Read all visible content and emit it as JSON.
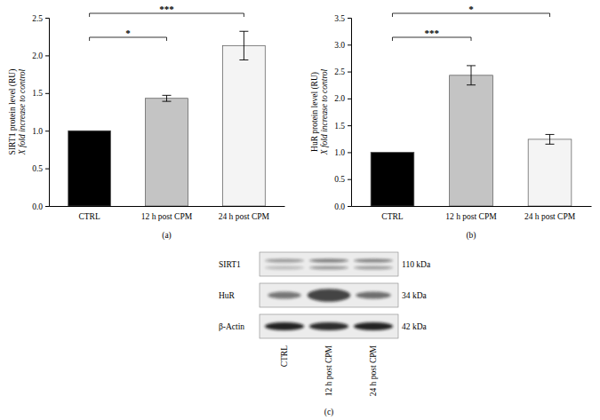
{
  "chart_data": [
    {
      "type": "bar",
      "y_label": [
        "SIRT1 protein level (RU)",
        "X fold increase to control"
      ],
      "panel_label": "(a)",
      "categories": [
        "CTRL",
        "12 h post CPM",
        "24 h post CPM"
      ],
      "values": [
        1.0,
        1.43,
        2.13
      ],
      "errors": [
        0,
        0.04,
        0.19
      ],
      "colors": [
        "#000000",
        "#c4c4c4",
        "#f4f4f4"
      ],
      "ylim": [
        0,
        2.5
      ],
      "yticks": [
        {
          "value": 0,
          "label": "0.0"
        },
        0.5,
        {
          "value": 1,
          "label": "1.0"
        },
        1.5,
        {
          "value": 2,
          "label": "2.0"
        },
        2.5
      ],
      "annotations": [
        {
          "text": "*",
          "from": 0,
          "to": 1
        },
        {
          "text": "***",
          "from": 0,
          "to": 2
        }
      ],
      "grid": false
    },
    {
      "type": "bar",
      "y_label": [
        "HuR protein level (RU)",
        "X fold increase to control"
      ],
      "panel_label": "(b)",
      "categories": [
        "CTRL",
        "12 h post CPM",
        "24 h post CPM"
      ],
      "values": [
        1.0,
        2.43,
        1.24
      ],
      "errors": [
        0,
        0.18,
        0.09
      ],
      "colors": [
        "#000000",
        "#c4c4c4",
        "#f4f4f4"
      ],
      "ylim": [
        0,
        3.5
      ],
      "yticks": [
        {
          "value": 0,
          "label": "0.0"
        },
        0.5,
        {
          "value": 1,
          "label": "1.0"
        },
        1.5,
        {
          "value": 2,
          "label": "2.0"
        },
        2.5,
        {
          "value": 3,
          "label": "3.0"
        },
        3.5
      ],
      "annotations": [
        {
          "text": "***",
          "from": 0,
          "to": 1
        },
        {
          "text": "*",
          "from": 0,
          "to": 2
        }
      ],
      "grid": false
    }
  ],
  "blot": {
    "rows": [
      {
        "label": "SIRT1",
        "size": "110 kDa"
      },
      {
        "label": "HuR",
        "size": "34 kDa"
      },
      {
        "label": "β-Actin",
        "size": "42 kDa"
      }
    ],
    "lanes": [
      "CTRL",
      "12 h post CPM",
      "24 h post CPM"
    ],
    "panel_label": "(c)"
  }
}
